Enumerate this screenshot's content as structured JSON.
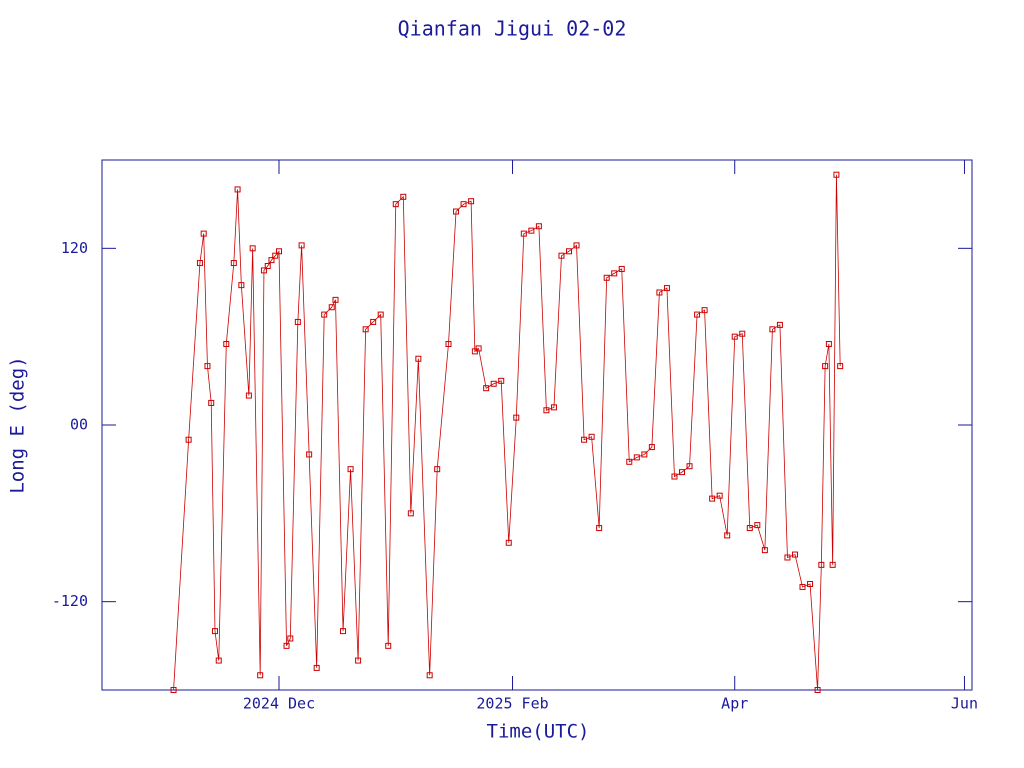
{
  "chart_data": {
    "type": "line",
    "title": "Qianfan Jigui 02-02",
    "x_label": "Time(UTC)",
    "y_label": "Long E (deg)",
    "x": [
      -28,
      -24,
      -21,
      -20,
      -19,
      -18,
      -17,
      -16,
      -14,
      -12,
      -11,
      -10,
      -8,
      -7,
      -5,
      -4,
      -3,
      -2,
      -1,
      0,
      2,
      3,
      5,
      6,
      8,
      10,
      12,
      14,
      15,
      17,
      19,
      21,
      23,
      25,
      27,
      29,
      31,
      33,
      35,
      37,
      40,
      42,
      45,
      47,
      49,
      51,
      52,
      53,
      55,
      57,
      59,
      61,
      63,
      65,
      67,
      69,
      71,
      73,
      75,
      77,
      79,
      81,
      83,
      85,
      87,
      89,
      91,
      93,
      95,
      97,
      99,
      101,
      103,
      105,
      107,
      109,
      111,
      113,
      115,
      117,
      119,
      121,
      123,
      125,
      127,
      129,
      131,
      133,
      135,
      137,
      139,
      141,
      143,
      144,
      145,
      146,
      147,
      148,
      149
    ],
    "series": [
      {
        "name": "Long E",
        "color": "#cc0000",
        "values": [
          -180,
          -10,
          110,
          130,
          40,
          15,
          -140,
          -160,
          55,
          110,
          160,
          95,
          20,
          120,
          -170,
          105,
          108,
          112,
          115,
          118,
          -150,
          -145,
          70,
          122,
          -20,
          -165,
          75,
          80,
          85,
          -140,
          -30,
          -160,
          65,
          70,
          75,
          -150,
          150,
          155,
          -60,
          45,
          -170,
          -30,
          55,
          145,
          150,
          152,
          50,
          52,
          25,
          28,
          30,
          -80,
          5,
          130,
          132,
          135,
          10,
          12,
          115,
          118,
          122,
          -10,
          -8,
          -70,
          100,
          103,
          106,
          -25,
          -22,
          -20,
          -15,
          90,
          93,
          -35,
          -32,
          -28,
          75,
          78,
          -50,
          -48,
          -75,
          60,
          62,
          -70,
          -68,
          -85,
          65,
          68,
          -90,
          -88,
          -110,
          -108,
          -180,
          -95,
          40,
          55,
          -95,
          170,
          40
        ]
      }
    ],
    "xlim": [
      -47,
      184
    ],
    "xticks": [
      {
        "value": 0,
        "label": "2024 Dec"
      },
      {
        "value": 62,
        "label": "2025 Feb"
      },
      {
        "value": 121,
        "label": "Apr"
      },
      {
        "value": 182,
        "label": "Jun"
      }
    ],
    "ylim": [
      -180,
      180
    ],
    "yticks": [
      -120,
      {
        "value": 0,
        "label": "00"
      },
      120
    ]
  }
}
